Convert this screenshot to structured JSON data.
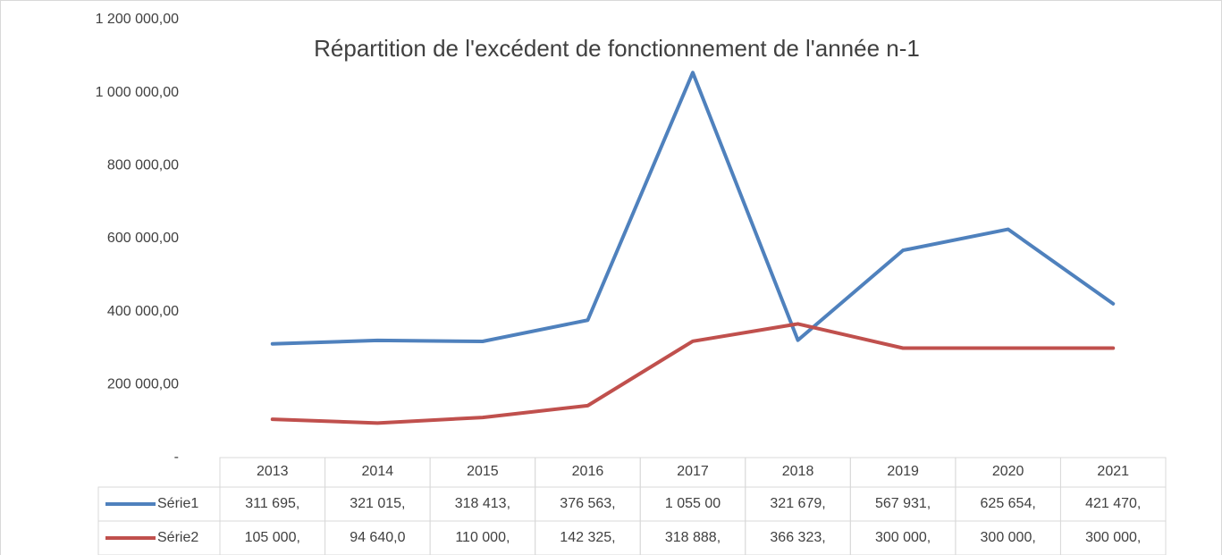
{
  "chart_data": {
    "type": "line",
    "title": "Répartition de l'excédent de fonctionnement de l'année n-1",
    "categories": [
      "2013",
      "2014",
      "2015",
      "2016",
      "2017",
      "2018",
      "2019",
      "2020",
      "2021"
    ],
    "series": [
      {
        "name": "Série1",
        "color": "#4f81bd",
        "values": [
          311695,
          321015,
          318413,
          376563,
          1055000,
          321679,
          567931,
          625654,
          421470
        ],
        "value_labels": [
          "311 695,",
          "321 015,",
          "318 413,",
          "376 563,",
          "1 055 00",
          "321 679,",
          "567 931,",
          "625 654,",
          "421 470,"
        ]
      },
      {
        "name": "Série2",
        "color": "#c0504d",
        "values": [
          105000,
          94640,
          110000,
          142325,
          318888,
          366323,
          300000,
          300000,
          300000
        ],
        "value_labels": [
          "105 000,",
          "94 640,0",
          "110 000,",
          "142 325,",
          "318 888,",
          "366 323,",
          "300 000,",
          "300 000,",
          "300 000,"
        ]
      }
    ],
    "ylim": [
      0,
      1200000
    ],
    "yticks": [
      {
        "value": 0,
        "label": "-"
      },
      {
        "value": 200000,
        "label": "200 000,00"
      },
      {
        "value": 400000,
        "label": "400 000,00"
      },
      {
        "value": 600000,
        "label": "600 000,00"
      },
      {
        "value": 800000,
        "label": "800 000,00"
      },
      {
        "value": 1000000,
        "label": "1 000 000,00"
      },
      {
        "value": 1200000,
        "label": "1 200 000,00"
      }
    ],
    "grid": false
  }
}
